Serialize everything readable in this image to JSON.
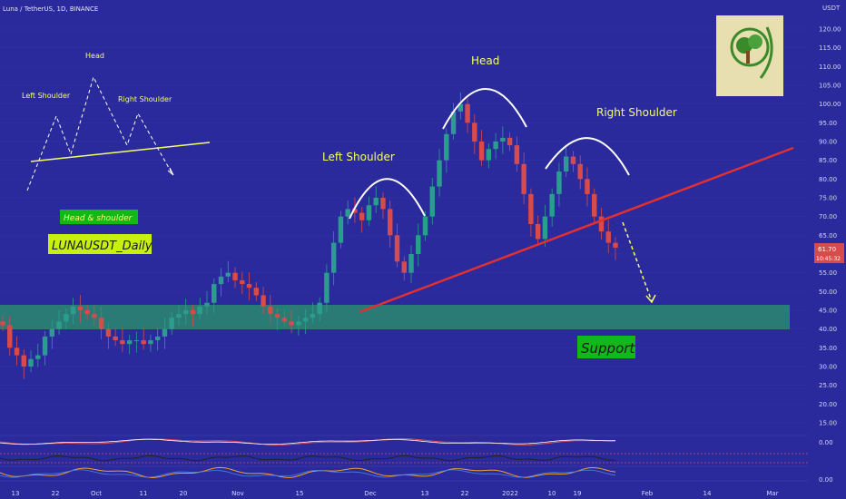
{
  "title": "Luna / TetherUS, 1D, BINANCE",
  "currency": "USDT",
  "price_tag": {
    "price": "61.70",
    "countdown": "10:45:32"
  },
  "legend": {
    "head_shoulder": "Head & shoulder",
    "symbol": "LUNAUSDT_Daily"
  },
  "annotations": {
    "left_shoulder": "Left Shoulder",
    "head": "Head",
    "right_shoulder": "Right Shoulder",
    "support": "Support",
    "mini_left_shoulder": "Left Shoulder",
    "mini_head": "Head",
    "mini_right_shoulder": "Right Shoulder"
  },
  "colors": {
    "background": "#2a2a9c",
    "up_candle": "#2a9d8f",
    "down_candle": "#d94a4a",
    "neckline": "#e23030",
    "support_zone": "#2a8a70",
    "annotation_text": "#f6ff6a",
    "label_bg": "#12b81a"
  },
  "chart_data": {
    "type": "candlestick",
    "title": "Luna / TetherUS, 1D, BINANCE",
    "y_unit": "USDT",
    "ylim": [
      15,
      120
    ],
    "y_ticks": [
      "120.00",
      "115.00",
      "110.00",
      "105.00",
      "100.00",
      "95.00",
      "90.00",
      "85.00",
      "80.00",
      "75.00",
      "70.00",
      "65.00",
      "60.00",
      "55.00",
      "50.00",
      "45.00",
      "40.00",
      "35.00",
      "30.00",
      "25.00",
      "20.00",
      "15.00"
    ],
    "x_ticks": [
      "13",
      "22",
      "Oct",
      "11",
      "20",
      "Nov",
      "15",
      "Dec",
      "13",
      "22",
      "2022",
      "10",
      "19",
      "Feb",
      "14",
      "Mar"
    ],
    "last_price": 61.7,
    "support_zone": [
      40.5,
      46.5
    ],
    "neckline": {
      "from": [
        "Nov 28",
        44
      ],
      "to": [
        "Mar 12",
        88
      ]
    },
    "key_levels": [
      {
        "label": "Left Shoulder",
        "high": 75
      },
      {
        "label": "Head",
        "high": 103
      },
      {
        "label": "Right Shoulder",
        "high": 88
      },
      {
        "label": "Support",
        "low": 40.5,
        "high": 46.5
      }
    ],
    "candles_close": [
      41,
      35,
      33,
      30,
      32,
      33,
      38,
      40,
      42,
      44,
      46,
      45,
      44,
      43,
      40,
      38,
      37,
      36,
      37,
      37,
      36,
      37,
      38,
      40,
      43,
      44,
      45,
      44,
      46,
      47,
      52,
      54,
      55,
      53,
      52,
      51,
      49,
      46,
      44,
      43,
      42,
      41,
      42,
      43,
      44,
      47,
      55,
      63,
      70,
      72,
      71,
      69,
      73,
      75,
      72,
      65,
      58,
      55,
      60,
      65,
      70,
      78,
      85,
      92,
      98,
      100,
      95,
      90,
      85,
      88,
      90,
      91,
      89,
      84,
      76,
      68,
      64,
      70,
      76,
      82,
      86,
      84,
      80,
      76,
      70,
      66,
      63,
      61.7
    ],
    "oscillator_1_value": "0.00",
    "oscillator_2_value": "0.00"
  }
}
